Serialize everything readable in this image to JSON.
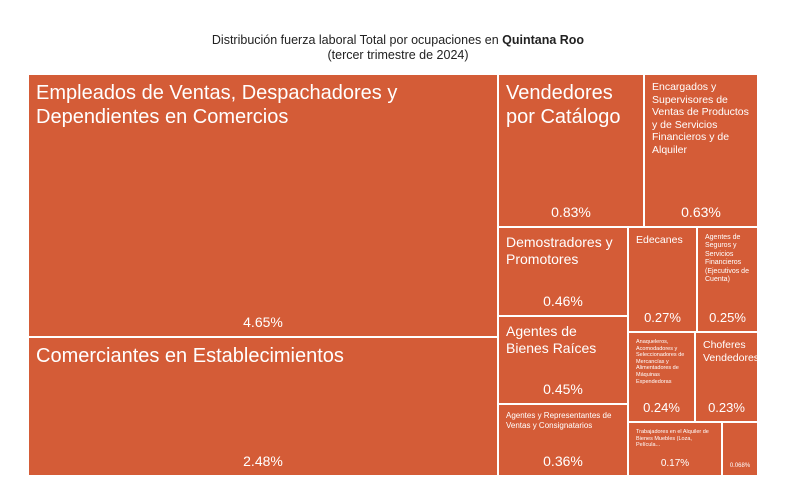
{
  "header": {
    "title_prefix": "Distribución fuerza laboral Total por ocupaciones en ",
    "title_bold": "Quintana Roo",
    "subtitle": "(tercer trimestre de 2024)"
  },
  "chart_data": {
    "type": "treemap",
    "title": "Distribución fuerza laboral Total por ocupaciones en Quintana Roo",
    "subtitle": "(tercer trimestre de 2024)",
    "colors": {
      "tile": "#d45c37",
      "border": "#ffffff",
      "text": "#ffffff"
    },
    "items": [
      {
        "name": "Empleados de Ventas, Despachadores y Dependientes en Comercios",
        "label": "4.65%",
        "value": 4.65
      },
      {
        "name": "Comerciantes en Establecimientos",
        "label": "2.48%",
        "value": 2.48
      },
      {
        "name": "Vendedores por Catálogo",
        "label": "0.83%",
        "value": 0.83
      },
      {
        "name": "Encargados y Supervisores de Ventas de Productos y de Servicios Financieros y de Alquiler",
        "label": "0.63%",
        "value": 0.63
      },
      {
        "name": "Demostradores y Promotores",
        "label": "0.46%",
        "value": 0.46
      },
      {
        "name": "Agentes de Bienes Raíces",
        "label": "0.45%",
        "value": 0.45
      },
      {
        "name": "Agentes y Representantes de Ventas y Consignatarios",
        "label": "0.36%",
        "value": 0.36
      },
      {
        "name": "Edecanes",
        "label": "0.27%",
        "value": 0.27
      },
      {
        "name": "Agentes de Seguros y Servicios Financieros (Ejecutivos de Cuenta)",
        "label": "0.25%",
        "value": 0.25
      },
      {
        "name": "Anaqueleros, Acomodadores y Seleccionadores de Mercancías y Alimentadores de Máquinas Expendedoras",
        "label": "0.24%",
        "value": 0.24
      },
      {
        "name": "Choferes Vendedores",
        "label": "0.23%",
        "value": 0.23
      },
      {
        "name": "Trabajadores en el Alquiler de Bienes Muebles (Loza, Película...",
        "label": "0.17%",
        "value": 0.17
      },
      {
        "name": "",
        "label": "0.068%",
        "value": 0.068
      }
    ]
  }
}
